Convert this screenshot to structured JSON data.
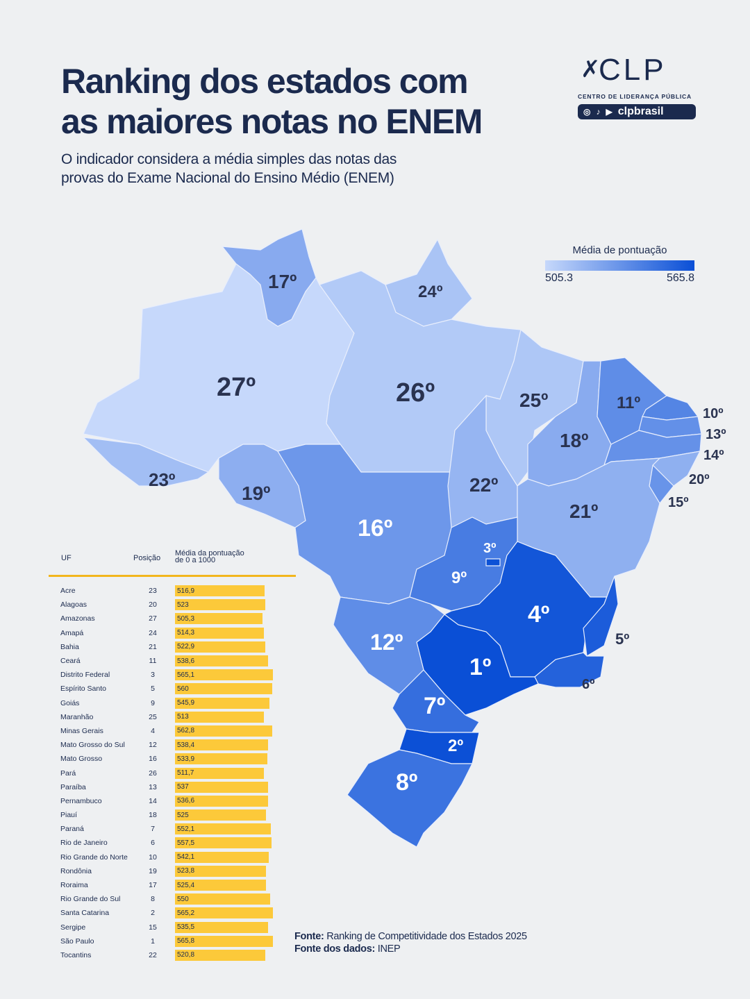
{
  "header": {
    "title_line1": "Ranking dos estados com",
    "title_line2": "as maiores notas no ENEM",
    "subtitle_line1": "O indicador considera a média simples das notas das",
    "subtitle_line2": "provas do Exame Nacional do Ensino Médio (ENEM)"
  },
  "logo": {
    "mark": "CLP",
    "name": "CENTRO DE LIDERANÇA PÚBLICA",
    "handle": "clpbrasil",
    "icons": [
      "instagram-icon",
      "tiktok-icon",
      "youtube-icon"
    ]
  },
  "legend": {
    "title": "Média de pontuação",
    "min": "505.3",
    "max": "565.8",
    "color_min": "#c6d8fb",
    "color_max": "#0a4fd6"
  },
  "table": {
    "headers": {
      "uf": "UF",
      "pos": "Posição",
      "avg_line1": "Média da pontuação",
      "avg_line2": "de 0 a 1000"
    },
    "rows": [
      {
        "uf": "Acre",
        "pos": "23",
        "avg": "516,9"
      },
      {
        "uf": "Alagoas",
        "pos": "20",
        "avg": "523"
      },
      {
        "uf": "Amazonas",
        "pos": "27",
        "avg": "505,3"
      },
      {
        "uf": "Amapá",
        "pos": "24",
        "avg": "514,3"
      },
      {
        "uf": "Bahia",
        "pos": "21",
        "avg": "522,9"
      },
      {
        "uf": "Ceará",
        "pos": "11",
        "avg": "538,6"
      },
      {
        "uf": "Distrito Federal",
        "pos": "3",
        "avg": "565,1"
      },
      {
        "uf": "Espírito Santo",
        "pos": "5",
        "avg": "560"
      },
      {
        "uf": "Goiás",
        "pos": "9",
        "avg": "545,9"
      },
      {
        "uf": "Maranhão",
        "pos": "25",
        "avg": "513"
      },
      {
        "uf": "Minas Gerais",
        "pos": "4",
        "avg": "562,8"
      },
      {
        "uf": "Mato Grosso do Sul",
        "pos": "12",
        "avg": "538,4"
      },
      {
        "uf": "Mato Grosso",
        "pos": "16",
        "avg": "533,9"
      },
      {
        "uf": "Pará",
        "pos": "26",
        "avg": "511,7"
      },
      {
        "uf": "Paraíba",
        "pos": "13",
        "avg": "537"
      },
      {
        "uf": "Pernambuco",
        "pos": "14",
        "avg": "536,6"
      },
      {
        "uf": "Piauí",
        "pos": "18",
        "avg": "525"
      },
      {
        "uf": "Paraná",
        "pos": "7",
        "avg": "552,1"
      },
      {
        "uf": "Rio de Janeiro",
        "pos": "6",
        "avg": "557,5"
      },
      {
        "uf": "Rio Grande do Norte",
        "pos": "10",
        "avg": "542,1"
      },
      {
        "uf": "Rondônia",
        "pos": "19",
        "avg": "523,8"
      },
      {
        "uf": "Roraima",
        "pos": "17",
        "avg": "525,4"
      },
      {
        "uf": "Rio Grande do Sul",
        "pos": "8",
        "avg": "550"
      },
      {
        "uf": "Santa Catarina",
        "pos": "2",
        "avg": "565,2"
      },
      {
        "uf": "Sergipe",
        "pos": "15",
        "avg": "535,5"
      },
      {
        "uf": "São Paulo",
        "pos": "1",
        "avg": "565,8"
      },
      {
        "uf": "Tocantins",
        "pos": "22",
        "avg": "520,8"
      }
    ]
  },
  "map": {
    "states": [
      {
        "code": "AM",
        "rank": "27º",
        "value": 505.3
      },
      {
        "code": "RR",
        "rank": "17º",
        "value": 525.4
      },
      {
        "code": "AP",
        "rank": "24º",
        "value": 514.3
      },
      {
        "code": "PA",
        "rank": "26º",
        "value": 511.7
      },
      {
        "code": "AC",
        "rank": "23º",
        "value": 516.9
      },
      {
        "code": "RO",
        "rank": "19º",
        "value": 523.8
      },
      {
        "code": "MT",
        "rank": "16º",
        "value": 533.9
      },
      {
        "code": "MA",
        "rank": "25º",
        "value": 513
      },
      {
        "code": "TO",
        "rank": "22º",
        "value": 520.8
      },
      {
        "code": "PI",
        "rank": "18º",
        "value": 525
      },
      {
        "code": "CE",
        "rank": "11º",
        "value": 538.6
      },
      {
        "code": "RN",
        "rank": "10º",
        "value": 542.1
      },
      {
        "code": "PB",
        "rank": "13º",
        "value": 537
      },
      {
        "code": "PE",
        "rank": "14º",
        "value": 536.6
      },
      {
        "code": "AL",
        "rank": "20º",
        "value": 523
      },
      {
        "code": "SE",
        "rank": "15º",
        "value": 535.5
      },
      {
        "code": "BA",
        "rank": "21º",
        "value": 522.9
      },
      {
        "code": "GO",
        "rank": "9º",
        "value": 545.9
      },
      {
        "code": "DF",
        "rank": "3º",
        "value": 565.1
      },
      {
        "code": "MG",
        "rank": "4º",
        "value": 562.8
      },
      {
        "code": "ES",
        "rank": "5º",
        "value": 560
      },
      {
        "code": "RJ",
        "rank": "6º",
        "value": 557.5
      },
      {
        "code": "SP",
        "rank": "1º",
        "value": 565.8
      },
      {
        "code": "MS",
        "rank": "12º",
        "value": 538.4
      },
      {
        "code": "PR",
        "rank": "7º",
        "value": 552.1
      },
      {
        "code": "SC",
        "rank": "2º",
        "value": 565.2
      },
      {
        "code": "RS",
        "rank": "8º",
        "value": 550
      }
    ]
  },
  "source": {
    "label1": "Fonte:",
    "text1": " Ranking de Competitividade dos Estados 2025",
    "label2": "Fonte dos dados:",
    "text2": " INEP"
  }
}
